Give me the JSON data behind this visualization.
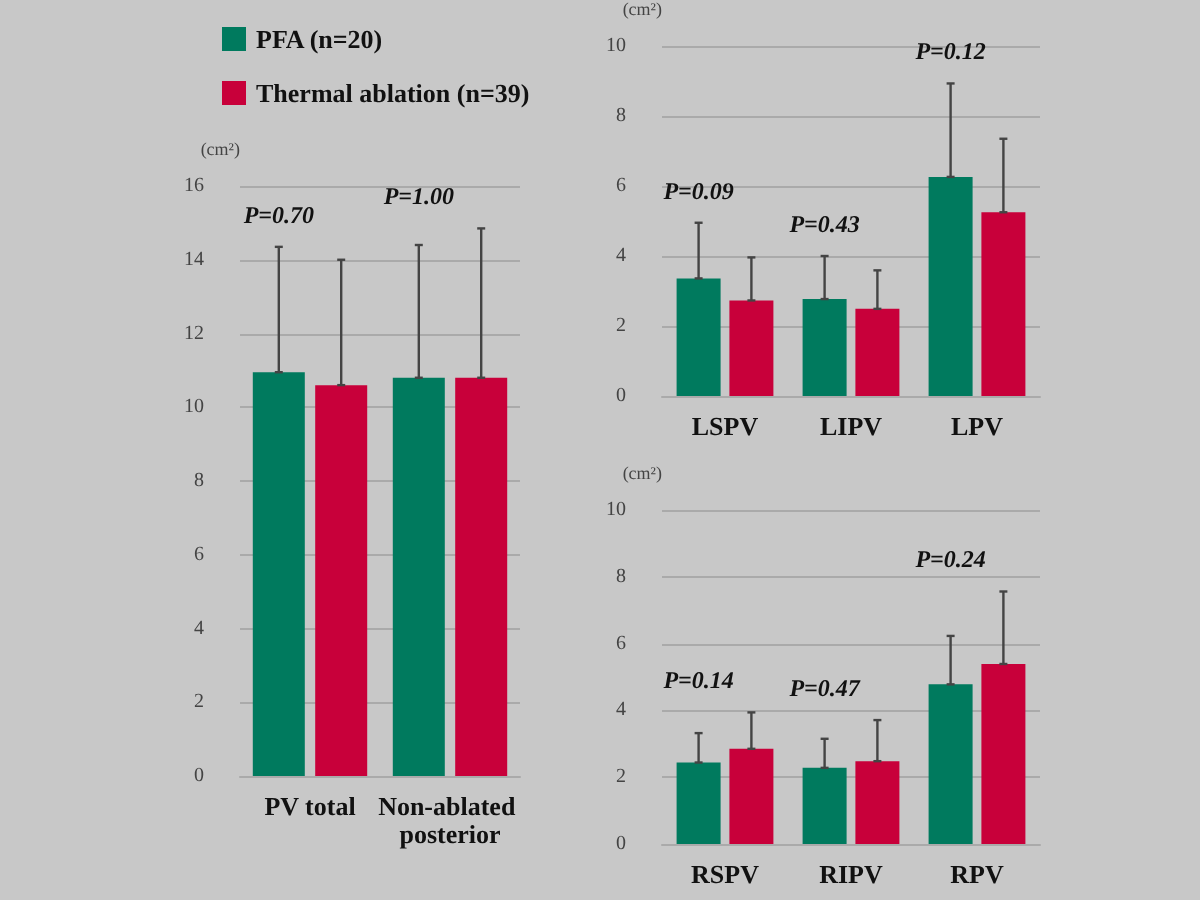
{
  "chart_data": [
    {
      "type": "bar",
      "ylabel": "(cm²)",
      "categories": [
        "PV total",
        "Non-ablated posterior"
      ],
      "ylim": [
        0,
        16
      ],
      "yticks": [
        0,
        2,
        4,
        6,
        8,
        10,
        12,
        14,
        16
      ],
      "grid": "y",
      "legend": "top",
      "series": [
        {
          "name": "PFA (n=20)",
          "color": "#007a5e",
          "values": [
            10.95,
            10.8
          ],
          "errors": [
            [
              10.95,
              14.35
            ],
            [
              10.8,
              14.4
            ]
          ]
        },
        {
          "name": "Thermal ablation (n=39)",
          "color": "#c8003a",
          "values": [
            10.6,
            10.8
          ],
          "errors": [
            [
              10.6,
              14.0
            ],
            [
              10.8,
              14.85
            ]
          ]
        }
      ],
      "annotations": [
        "P=0.70",
        "P=1.00"
      ]
    },
    {
      "type": "bar",
      "ylabel": "(cm²)",
      "categories": [
        "LSPV",
        "LIPV",
        "LPV"
      ],
      "ylim": [
        0,
        10
      ],
      "yticks": [
        0,
        2,
        4,
        6,
        8,
        10
      ],
      "grid": "y",
      "series": [
        {
          "color": "#007a5e",
          "values": [
            3.36,
            2.77,
            6.26
          ],
          "errors": [
            [
              3.36,
              4.95
            ],
            [
              2.77,
              4.0
            ],
            [
              6.26,
              8.93
            ]
          ]
        },
        {
          "color": "#c8003a",
          "values": [
            2.73,
            2.49,
            5.25
          ],
          "errors": [
            [
              2.73,
              3.96
            ],
            [
              2.49,
              3.59
            ],
            [
              5.25,
              7.35
            ]
          ]
        }
      ],
      "annotations": [
        "P=0.09",
        "P=0.43",
        "P=0.12"
      ]
    },
    {
      "type": "bar",
      "ylabel": "(cm²)",
      "categories": [
        "RSPV",
        "RIPV",
        "RPV"
      ],
      "ylim": [
        0,
        10
      ],
      "yticks": [
        0,
        2,
        4,
        6,
        8,
        10
      ],
      "grid": "y",
      "series": [
        {
          "color": "#007a5e",
          "values": [
            2.44,
            2.28,
            4.78
          ],
          "errors": [
            [
              2.44,
              3.32
            ],
            [
              2.28,
              3.15
            ],
            [
              4.78,
              6.23
            ]
          ]
        },
        {
          "color": "#c8003a",
          "values": [
            2.85,
            2.48,
            5.39
          ],
          "errors": [
            [
              2.85,
              3.94
            ],
            [
              2.48,
              3.71
            ],
            [
              5.39,
              7.56
            ]
          ]
        }
      ],
      "annotations": [
        "P=0.14",
        "P=0.47",
        "P=0.24"
      ]
    }
  ]
}
